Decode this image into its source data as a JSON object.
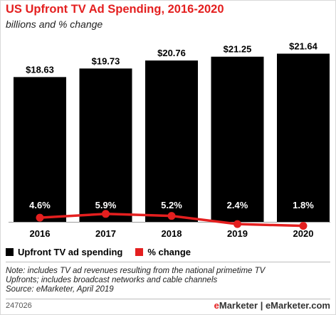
{
  "title": "US Upfront TV Ad Spending, 2016-2020",
  "subtitle": "billions and % change",
  "chart_data": {
    "type": "bar",
    "categories": [
      "2016",
      "2017",
      "2018",
      "2019",
      "2020"
    ],
    "series": [
      {
        "name": "Upfront TV ad spending",
        "type": "bar",
        "values": [
          18.63,
          19.73,
          20.76,
          21.25,
          21.64
        ],
        "labels": [
          "$18.63",
          "$19.73",
          "$20.76",
          "$21.25",
          "$21.64"
        ],
        "color": "#000000"
      },
      {
        "name": "% change",
        "type": "line",
        "values": [
          4.6,
          5.9,
          5.2,
          2.4,
          1.8
        ],
        "labels": [
          "4.6%",
          "5.9%",
          "5.2%",
          "2.4%",
          "1.8%"
        ],
        "color": "#e41f1f"
      }
    ],
    "legend_position": "bottom-left",
    "grid": false
  },
  "note": {
    "line1": "Note: includes TV ad revenues resulting from the national primetime TV",
    "line2": "Upfronts; includes broadcast networks and cable channels",
    "line3": "Source: eMarketer, April 2019"
  },
  "footer": {
    "id": "247026",
    "brand_accent": "e",
    "brand_rest": "Marketer",
    "brand_domain": " | eMarketer.com"
  }
}
